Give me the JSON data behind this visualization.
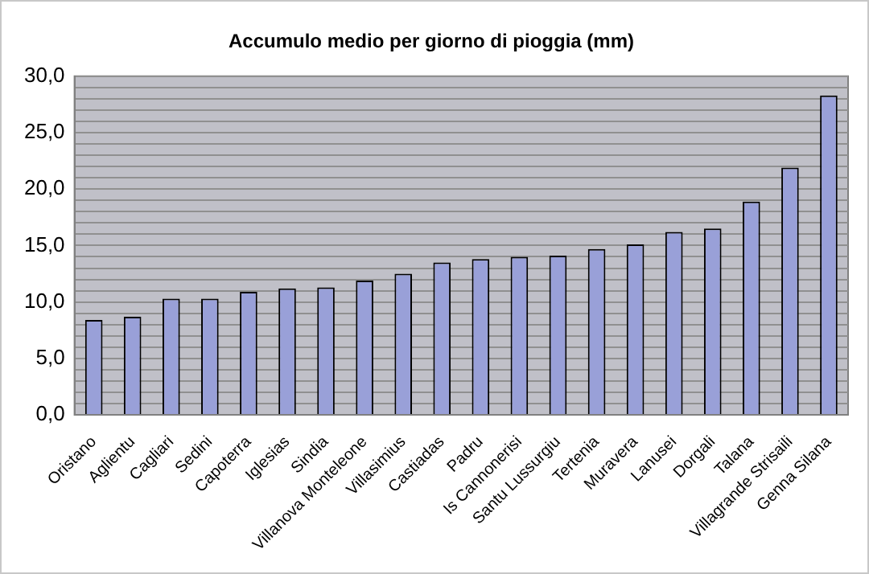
{
  "chart_data": {
    "type": "bar",
    "title": "Accumulo medio per giorno di pioggia (mm)",
    "categories": [
      "Oristano",
      "Aglientu",
      "Cagliari",
      "Sedini",
      "Capoterra",
      "Iglesias",
      "Sindia",
      "Villanova Monteleone",
      "Villasimius",
      "Castiadas",
      "Padru",
      "Is Cannonerisi",
      "Santu Lussurgiu",
      "Tertenia",
      "Muravera",
      "Lanusei",
      "Dorgali",
      "Talana",
      "Villagrande Strisaili",
      "Genna Silana"
    ],
    "values": [
      8.4,
      8.7,
      10.3,
      10.3,
      10.9,
      11.2,
      11.3,
      11.9,
      12.5,
      13.5,
      13.8,
      14.0,
      14.1,
      14.7,
      15.1,
      16.2,
      16.5,
      18.9,
      21.9,
      28.3
    ],
    "color": "#99a0d8",
    "ylim": [
      0,
      30
    ],
    "yticks": [
      {
        "value": 0,
        "label": "0,0"
      },
      {
        "value": 1,
        "label": null
      },
      {
        "value": 2,
        "label": null
      },
      {
        "value": 3,
        "label": null
      },
      {
        "value": 4,
        "label": null
      },
      {
        "value": 5,
        "label": "5,0"
      },
      {
        "value": 6,
        "label": null
      },
      {
        "value": 7,
        "label": null
      },
      {
        "value": 8,
        "label": null
      },
      {
        "value": 9,
        "label": null
      },
      {
        "value": 10,
        "label": "10,0"
      },
      {
        "value": 11,
        "label": null
      },
      {
        "value": 12,
        "label": null
      },
      {
        "value": 13,
        "label": null
      },
      {
        "value": 14,
        "label": null
      },
      {
        "value": 15,
        "label": "15,0"
      },
      {
        "value": 16,
        "label": null
      },
      {
        "value": 17,
        "label": null
      },
      {
        "value": 18,
        "label": null
      },
      {
        "value": 19,
        "label": null
      },
      {
        "value": 20,
        "label": "20,0"
      },
      {
        "value": 21,
        "label": null
      },
      {
        "value": 22,
        "label": null
      },
      {
        "value": 23,
        "label": null
      },
      {
        "value": 24,
        "label": null
      },
      {
        "value": 25,
        "label": "25,0"
      },
      {
        "value": 26,
        "label": null
      },
      {
        "value": 27,
        "label": null
      },
      {
        "value": 28,
        "label": null
      },
      {
        "value": 29,
        "label": null
      },
      {
        "value": 30,
        "label": "30,0"
      }
    ],
    "grid": "y",
    "legend": false
  }
}
